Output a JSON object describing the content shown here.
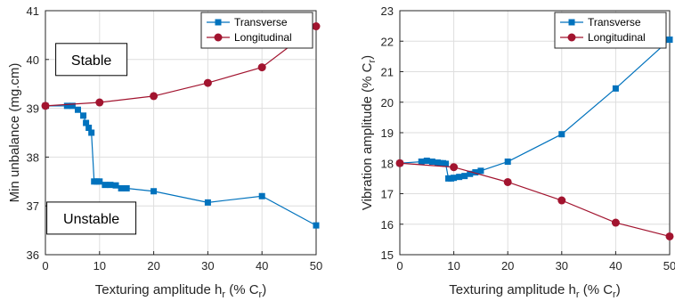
{
  "colors": {
    "transverse": "#0072BD",
    "longitudinal": "#A2142F",
    "grid": "#DEDEDE",
    "axis": "#262626"
  },
  "chart_data": [
    {
      "type": "line",
      "title": "",
      "xlabel_main": "Texturing amplitude h",
      "xlabel_sub": "r",
      "xlabel_tail": " (% C",
      "xlabel_sub2": "r",
      "xlabel_end": ")",
      "ylabel": "Min unbalance (mg.cm)",
      "xlim": [
        0,
        50
      ],
      "ylim": [
        36,
        41
      ],
      "xticks": [
        0,
        10,
        20,
        30,
        40,
        50
      ],
      "yticks": [
        36,
        37,
        38,
        39,
        40,
        41
      ],
      "grid": true,
      "legend_position": "top-right",
      "series": [
        {
          "name": "Transverse",
          "marker": "square",
          "x": [
            0,
            4,
            5,
            6,
            7,
            7.5,
            8,
            8.5,
            9,
            9.5,
            10,
            11,
            12,
            13,
            14,
            15,
            20,
            30,
            40,
            50
          ],
          "y": [
            39.05,
            39.05,
            39.05,
            38.97,
            38.85,
            38.7,
            38.6,
            38.5,
            37.5,
            37.5,
            37.5,
            37.43,
            37.43,
            37.42,
            37.36,
            37.36,
            37.3,
            37.07,
            37.2,
            36.6
          ]
        },
        {
          "name": "Longitudinal",
          "marker": "circle",
          "x": [
            0,
            10,
            20,
            30,
            40,
            50
          ],
          "y": [
            39.05,
            39.12,
            39.25,
            39.52,
            39.84,
            40.68
          ]
        }
      ],
      "annotations": [
        {
          "text": "Stable",
          "x": 7.5,
          "y": 40.0
        },
        {
          "text": "Unstable",
          "x": 7.5,
          "y": 36.75
        }
      ]
    },
    {
      "type": "line",
      "title": "",
      "xlabel_main": "Texturing amplitude h",
      "xlabel_sub": "r",
      "xlabel_tail": " (% C",
      "xlabel_sub2": "r",
      "xlabel_end": ")",
      "ylabel_main": "Vibration amplitude (% C",
      "ylabel_sub": "r",
      "ylabel_end": ")",
      "xlim": [
        0,
        50
      ],
      "ylim": [
        15,
        23
      ],
      "xticks": [
        0,
        10,
        20,
        30,
        40,
        50
      ],
      "yticks": [
        15,
        16,
        17,
        18,
        19,
        20,
        21,
        22,
        23
      ],
      "grid": true,
      "legend_position": "top-right",
      "series": [
        {
          "name": "Transverse",
          "marker": "square",
          "x": [
            0,
            4,
            5,
            6,
            7,
            7.5,
            8,
            8.5,
            9,
            9.5,
            10,
            11,
            12,
            13,
            14,
            15,
            20,
            30,
            40,
            50
          ],
          "y": [
            18.0,
            18.05,
            18.08,
            18.05,
            18.02,
            18.0,
            18.0,
            17.98,
            17.5,
            17.5,
            17.52,
            17.55,
            17.58,
            17.65,
            17.7,
            17.75,
            18.05,
            18.95,
            20.45,
            22.05
          ]
        },
        {
          "name": "Longitudinal",
          "marker": "circle",
          "x": [
            0,
            10,
            20,
            30,
            40,
            50
          ],
          "y": [
            18.0,
            17.87,
            17.38,
            16.78,
            16.05,
            15.6
          ]
        }
      ],
      "annotations": []
    }
  ]
}
